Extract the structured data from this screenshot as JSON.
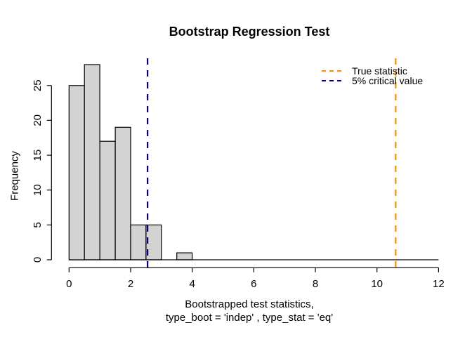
{
  "title": "Bootstrap Regression Test",
  "chart_data": {
    "type": "bar",
    "subtype": "histogram",
    "title": "Bootstrap Regression Test",
    "xlabel_line1": "Bootstrapped test statistics,",
    "xlabel_line2": "type_boot = 'indep' , type_stat = 'eq'",
    "ylabel": "Frequency",
    "bin_start": 0,
    "bin_width": 0.5,
    "counts": [
      25,
      28,
      17,
      19,
      5,
      5,
      0,
      1
    ],
    "x_ticks": [
      0,
      2,
      4,
      6,
      8,
      10,
      12
    ],
    "y_ticks": [
      0,
      5,
      10,
      15,
      20,
      25
    ],
    "xlim": [
      0,
      12
    ],
    "ylim": [
      0,
      28
    ],
    "grid": false,
    "legend_position": "topright",
    "bar_fill": "#D3D3D3",
    "bar_stroke": "#000000",
    "vlines": [
      {
        "value": 10.61,
        "label": "True statistic",
        "color": "#FF8C00",
        "style": "dashed"
      },
      {
        "value": 2.55,
        "label": "5% critical value",
        "color": "#000080",
        "style": "dashed"
      }
    ]
  }
}
